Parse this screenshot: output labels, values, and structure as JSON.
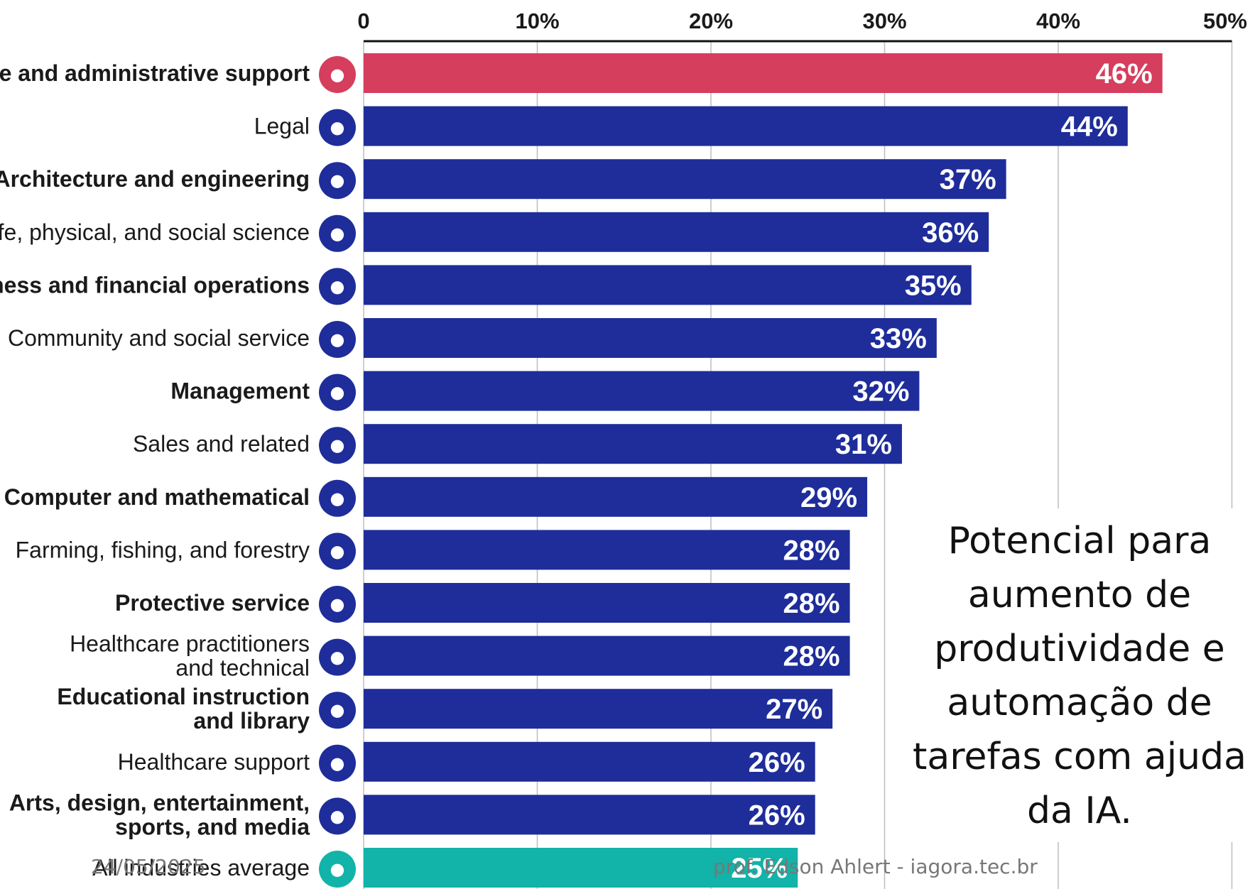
{
  "chart_data": {
    "type": "bar",
    "orientation": "horizontal",
    "categories": [
      "Office and administrative support",
      "Legal",
      "Architecture and engineering",
      "Life, physical, and social science",
      "Business and financial operations",
      "Community and social service",
      "Management",
      "Sales and related",
      "Computer and mathematical",
      "Farming, fishing, and forestry",
      "Protective service",
      "Healthcare practitioners and technical",
      "Educational instruction and library",
      "Healthcare support",
      "Arts, design, entertainment, sports, and media",
      "All industries average"
    ],
    "values": [
      46,
      44,
      37,
      36,
      35,
      33,
      32,
      31,
      29,
      28,
      28,
      28,
      27,
      26,
      26,
      25
    ],
    "value_labels": [
      "46%",
      "44%",
      "37%",
      "36%",
      "35%",
      "33%",
      "32%",
      "31%",
      "29%",
      "28%",
      "28%",
      "28%",
      "27%",
      "26%",
      "26%",
      "25%"
    ],
    "bar_colors": [
      "#d63e5e",
      "#1e2d9a",
      "#1e2d9a",
      "#1e2d9a",
      "#1e2d9a",
      "#1e2d9a",
      "#1e2d9a",
      "#1e2d9a",
      "#1e2d9a",
      "#1e2d9a",
      "#1e2d9a",
      "#1e2d9a",
      "#1e2d9a",
      "#1e2d9a",
      "#1e2d9a",
      "#12b3a8"
    ],
    "icons": [
      "office-icon",
      "gavel-icon",
      "building-icon",
      "people-icon",
      "handshake-icon",
      "person-icon",
      "document-icon",
      "bar-chart-icon",
      "gear-icon",
      "tree-icon",
      "lock-icon",
      "stethoscope-icon",
      "graduation-cap-icon",
      "heart-pulse-icon",
      "gamepad-icon",
      "factory-icon"
    ],
    "xlim": [
      0,
      50
    ],
    "xticks": [
      "0",
      "10%",
      "20%",
      "30%",
      "40%",
      "50%"
    ],
    "grid": true,
    "title": "",
    "xlabel": "",
    "ylabel": ""
  },
  "caption": "Potencial para aumento de produtividade e automação de tarefas com ajuda da IA.",
  "footer": {
    "date": "24/05/2025",
    "credit": "prof. Edson Ahlert - iagora.tec.br"
  }
}
